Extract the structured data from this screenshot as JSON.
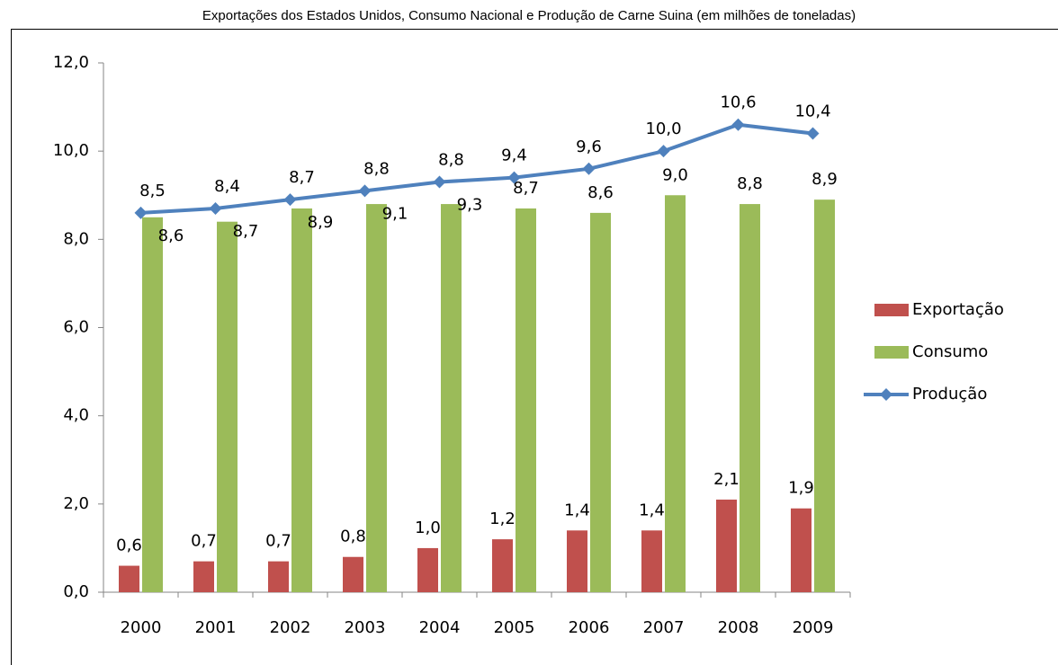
{
  "chart_data": {
    "type": "bar_line",
    "title": "Exportações dos Estados Unidos, Consumo Nacional e Produção de Carne Suina (em milhões de toneladas)",
    "categories": [
      "2000",
      "2001",
      "2002",
      "2003",
      "2004",
      "2005",
      "2006",
      "2007",
      "2008",
      "2009"
    ],
    "series": [
      {
        "name": "Exportação",
        "type": "bar",
        "color": "#c0504d",
        "values": [
          0.6,
          0.7,
          0.7,
          0.8,
          1.0,
          1.2,
          1.4,
          1.4,
          2.1,
          1.9
        ],
        "value_labels": [
          "0,6",
          "0,7",
          "0,7",
          "0,8",
          "1,0",
          "1,2",
          "1,4",
          "1,4",
          "2,1",
          "1,9"
        ]
      },
      {
        "name": "Consumo",
        "type": "bar",
        "color": "#9bbb59",
        "values": [
          8.5,
          8.4,
          8.7,
          8.8,
          8.8,
          8.7,
          8.6,
          9.0,
          8.8,
          8.9
        ],
        "value_labels": [
          "8,5",
          "8,4",
          "8,7",
          "8,8",
          "8,8",
          "8,7",
          "8,6",
          "9,0",
          "8,8",
          "8,9"
        ]
      },
      {
        "name": "Produção",
        "type": "line",
        "color": "#4f81bd",
        "values": [
          8.6,
          8.7,
          8.9,
          9.1,
          9.3,
          9.4,
          9.6,
          10.0,
          10.6,
          10.4
        ],
        "value_labels": [
          "8,6",
          "8,7",
          "8,9",
          "9,1",
          "9,3",
          "9,4",
          "9,6",
          "10,0",
          "10,6",
          "10,4"
        ]
      }
    ],
    "ylim": [
      0,
      12
    ],
    "yticks": [
      {
        "value": 0,
        "label": "0,0"
      },
      {
        "value": 2,
        "label": "2,0"
      },
      {
        "value": 4,
        "label": "4,0"
      },
      {
        "value": 6,
        "label": "6,0"
      },
      {
        "value": 8,
        "label": "8,0"
      },
      {
        "value": 10,
        "label": "10,0"
      },
      {
        "value": 12,
        "label": "12,0"
      }
    ],
    "grid": false,
    "legend": "right"
  }
}
